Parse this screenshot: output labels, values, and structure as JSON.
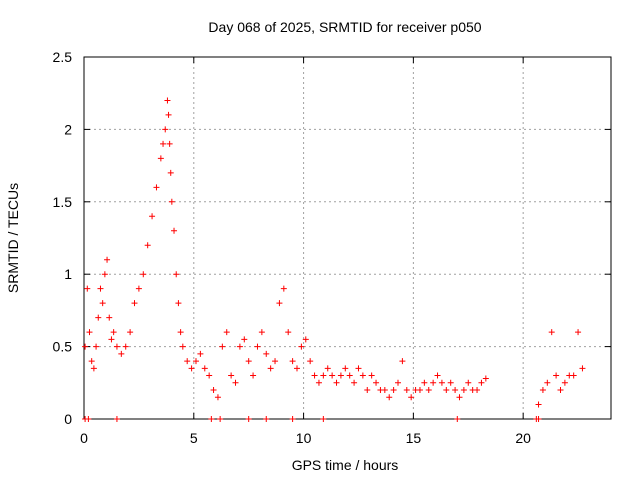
{
  "chart_data": {
    "type": "scatter",
    "title": "Day 068 of 2025, SRMTID for receiver p050",
    "xlabel": "GPS time / hours",
    "ylabel": "SRMTID / TECUs",
    "xlim": [
      0,
      24
    ],
    "ylim": [
      0,
      2.5
    ],
    "xticks": [
      0,
      5,
      10,
      15,
      20
    ],
    "yticks": [
      0,
      0.5,
      1,
      1.5,
      2,
      2.5
    ],
    "ytick_labels": [
      "0",
      "0.5",
      "1",
      "1.5",
      "2",
      "2.5"
    ],
    "grid": true,
    "marker": "+",
    "color": "#ff0000",
    "series": [
      {
        "name": "SRMTID",
        "x": [
          0.05,
          0.15,
          0.25,
          0.35,
          0.45,
          0.55,
          0.65,
          0.75,
          0.85,
          0.95,
          1.05,
          1.15,
          1.25,
          1.35,
          1.5,
          1.7,
          1.9,
          2.1,
          2.3,
          2.5,
          2.7,
          2.9,
          3.1,
          3.3,
          3.5,
          3.6,
          3.7,
          3.8,
          3.85,
          3.9,
          3.95,
          4.0,
          4.1,
          4.2,
          4.3,
          4.4,
          4.5,
          4.7,
          4.9,
          5.1,
          5.3,
          5.5,
          5.7,
          5.9,
          6.1,
          6.3,
          6.5,
          6.7,
          6.9,
          7.1,
          7.3,
          7.5,
          7.7,
          7.9,
          8.1,
          8.3,
          8.5,
          8.7,
          8.9,
          9.1,
          9.3,
          9.5,
          9.7,
          9.9,
          10.1,
          10.3,
          10.5,
          10.7,
          10.9,
          11.1,
          11.3,
          11.5,
          11.7,
          11.9,
          12.1,
          12.3,
          12.5,
          12.7,
          12.9,
          13.1,
          13.3,
          13.5,
          13.7,
          13.9,
          14.1,
          14.3,
          14.5,
          14.7,
          14.9,
          15.1,
          15.3,
          15.5,
          15.7,
          15.9,
          16.1,
          16.3,
          16.5,
          16.7,
          16.9,
          17.1,
          17.3,
          17.5,
          17.7,
          17.9,
          18.1,
          18.3,
          20.7,
          20.9,
          21.1,
          21.3,
          21.5,
          21.7,
          21.9,
          22.1,
          22.3,
          22.5,
          22.7
        ],
        "y": [
          0.5,
          0.9,
          0.6,
          0.4,
          0.35,
          0.5,
          0.7,
          0.9,
          0.8,
          1.0,
          1.1,
          0.7,
          0.55,
          0.6,
          0.5,
          0.45,
          0.5,
          0.6,
          0.8,
          0.9,
          1.0,
          1.2,
          1.4,
          1.6,
          1.8,
          1.9,
          2.0,
          2.2,
          2.1,
          1.9,
          1.7,
          1.5,
          1.3,
          1.0,
          0.8,
          0.6,
          0.5,
          0.4,
          0.35,
          0.4,
          0.45,
          0.35,
          0.3,
          0.2,
          0.15,
          0.5,
          0.6,
          0.3,
          0.25,
          0.5,
          0.55,
          0.4,
          0.3,
          0.5,
          0.6,
          0.45,
          0.35,
          0.4,
          0.8,
          0.9,
          0.6,
          0.4,
          0.35,
          0.5,
          0.55,
          0.4,
          0.3,
          0.25,
          0.3,
          0.35,
          0.3,
          0.25,
          0.3,
          0.35,
          0.3,
          0.25,
          0.35,
          0.3,
          0.2,
          0.3,
          0.25,
          0.2,
          0.2,
          0.15,
          0.2,
          0.25,
          0.4,
          0.2,
          0.15,
          0.2,
          0.2,
          0.25,
          0.2,
          0.25,
          0.3,
          0.25,
          0.2,
          0.25,
          0.2,
          0.15,
          0.2,
          0.25,
          0.2,
          0.2,
          0.25,
          0.28,
          0.1,
          0.2,
          0.25,
          0.6,
          0.3,
          0.2,
          0.25,
          0.3,
          0.3,
          0.6,
          0.35
        ]
      }
    ],
    "zero_markers_x": [
      0.05,
      0.2,
      1.5,
      5.8,
      6.2,
      7.5,
      8.3,
      9.5,
      10.9,
      17.0,
      20.6,
      20.7
    ]
  }
}
